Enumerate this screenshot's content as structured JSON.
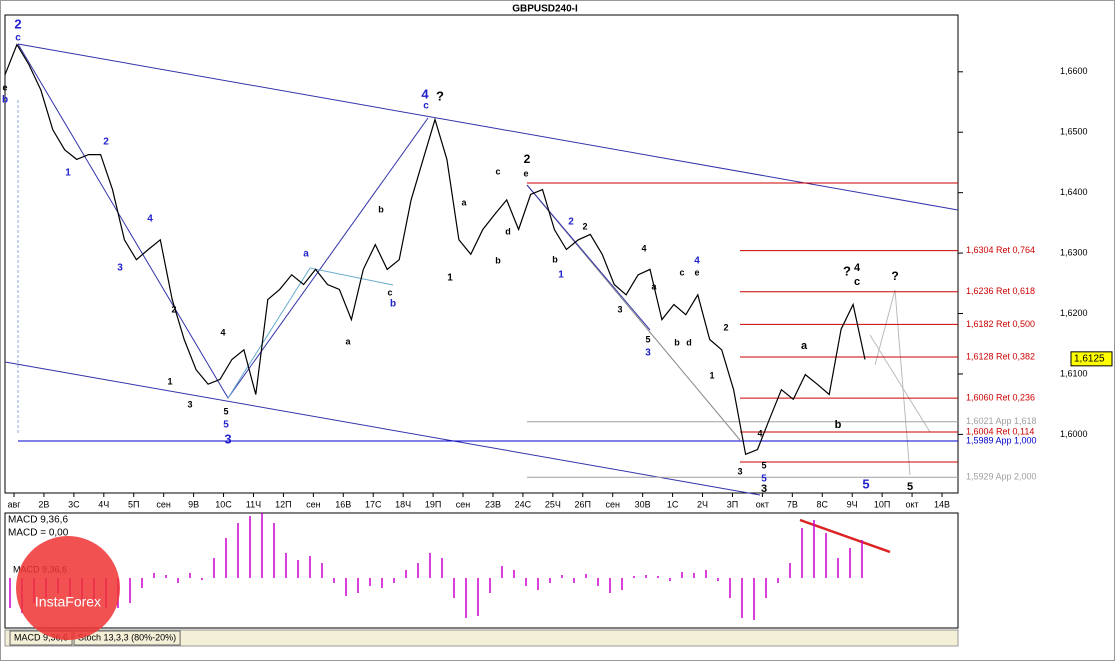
{
  "chart_data": [
    {
      "type": "line",
      "title": "GBPUSD240-I",
      "color": "#000000",
      "ylim": [
        1.5903,
        1.6694
      ],
      "yticks": [
        {
          "value": 1.66,
          "label": "1,6600"
        },
        {
          "value": 1.65,
          "label": "1,6500"
        },
        {
          "value": 1.64,
          "label": "1,6400"
        },
        {
          "value": 1.63,
          "label": "1,6300"
        },
        {
          "value": 1.62,
          "label": "1,6200"
        },
        {
          "value": 1.61,
          "label": "1,6100"
        },
        {
          "value": 1.6,
          "label": "1,6000"
        }
      ],
      "x_labels": [
        "авг",
        "2В",
        "3С",
        "4Ч",
        "5П",
        "сен",
        "9В",
        "10С",
        "11Ч",
        "12П",
        "сен",
        "16В",
        "17С",
        "18Ч",
        "19П",
        "сен",
        "23В",
        "24С",
        "25Ч",
        "26П",
        "сен",
        "30В",
        "1С",
        "2Ч",
        "3П",
        "окт",
        "7В",
        "8С",
        "9Ч",
        "10П",
        "окт",
        "14В"
      ],
      "values": [
        1.6595,
        1.6645,
        1.6612,
        1.657,
        1.6504,
        1.6471,
        1.6455,
        1.6463,
        1.6463,
        1.6405,
        1.6322,
        1.6289,
        1.6306,
        1.6322,
        1.6223,
        1.6157,
        1.6107,
        1.6083,
        1.6091,
        1.6124,
        1.614,
        1.6066,
        1.6223,
        1.624,
        1.6264,
        1.6248,
        1.6273,
        1.6248,
        1.624,
        1.619,
        1.6273,
        1.6314,
        1.6273,
        1.6289,
        1.6388,
        1.6455,
        1.6521,
        1.6455,
        1.6322,
        1.6298,
        1.6339,
        1.6364,
        1.6388,
        1.6339,
        1.6397,
        1.6405,
        1.6339,
        1.6306,
        1.6322,
        1.6331,
        1.6298,
        1.6248,
        1.6231,
        1.6264,
        1.6273,
        1.619,
        1.6215,
        1.6198,
        1.6231,
        1.6157,
        1.614,
        1.6074,
        1.5967,
        1.5975,
        1.6025,
        1.6074,
        1.6058,
        1.6099,
        1.6083,
        1.6066,
        1.6174,
        1.6215,
        1.6124
      ],
      "current_price": {
        "value": 1.6125,
        "label": "1,6125"
      },
      "levels": [
        {
          "value": 1.6304,
          "label": "1,6304 Ret 0,764",
          "color": "#cc0000"
        },
        {
          "value": 1.6236,
          "label": "1,6236 Ret 0,618",
          "color": "#cc0000"
        },
        {
          "value": 1.6182,
          "label": "1,6182 Ret 0,500",
          "color": "#cc0000"
        },
        {
          "value": 1.6128,
          "label": "1,6128 Ret 0,382",
          "color": "#cc0000"
        },
        {
          "value": 1.606,
          "label": "1,6060 Ret 0,236",
          "color": "#cc0000"
        },
        {
          "value": 1.6021,
          "label": "1,6021 App 1,618",
          "color": "#a0a0a0"
        },
        {
          "value": 1.6004,
          "label": "1,6004 Ret 0,114",
          "color": "#cc0000"
        },
        {
          "value": 1.5989,
          "label": "1,5989 App 1,000",
          "color": "#0000cc"
        },
        {
          "value": 1.5929,
          "label": "1,5929 App 2,000",
          "color": "#a0a0a0"
        }
      ],
      "wave_labels": [
        "2",
        "c",
        "e",
        "b",
        "1",
        "2",
        "4",
        "3",
        "2",
        "1",
        "3",
        "4",
        "5",
        "5",
        "3",
        "a",
        "b",
        "b",
        "c",
        "a",
        "4",
        "c",
        "?",
        "1",
        "a",
        "b",
        "c",
        "d",
        "e",
        "2",
        "2",
        "1",
        "2",
        "b",
        "4",
        "a",
        "c",
        "e",
        "4",
        "b",
        "d",
        "3",
        "5",
        "3",
        "2",
        "1",
        "4",
        "3",
        "5",
        "5",
        "3",
        "a",
        "b",
        "?",
        "4",
        "c",
        "?",
        "5",
        "5"
      ]
    },
    {
      "type": "bar",
      "title": "MACD 9,36,6",
      "subtitle": "MACD = 0,00",
      "color": "#cc00cc",
      "positive_color": "#cc00cc",
      "ylim": [
        -50,
        65
      ],
      "values": [
        -30,
        -35,
        -25,
        -20,
        -15,
        -20,
        -25,
        -25,
        -30,
        -30,
        -25,
        -10,
        5,
        3,
        -5,
        5,
        -2,
        20,
        40,
        55,
        62,
        65,
        55,
        25,
        18,
        22,
        15,
        -5,
        -18,
        -15,
        -8,
        -10,
        -5,
        8,
        15,
        25,
        20,
        -20,
        -40,
        -38,
        -15,
        12,
        8,
        -8,
        -12,
        -5,
        3,
        -5,
        4,
        -8,
        -15,
        -12,
        2,
        3,
        2,
        -3,
        6,
        5,
        8,
        -3,
        -20,
        -40,
        -42,
        -20,
        -5,
        15,
        50,
        58,
        45,
        20,
        30,
        38
      ],
      "tabs": [
        "MACD 9,36,6",
        "Stoch 13,3,3 (80%-20%)"
      ],
      "watermark": "InstaForex"
    }
  ]
}
